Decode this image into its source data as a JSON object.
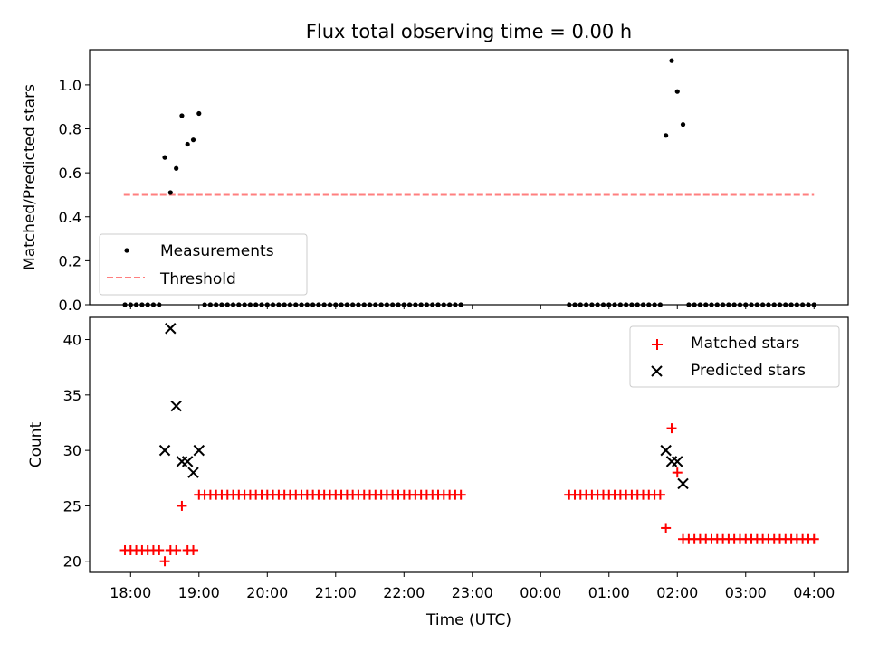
{
  "chart_data": [
    {
      "type": "scatter",
      "title": "Flux total observing time = 0.00 h",
      "xlabel": "",
      "ylabel": "Matched/Predicted stars",
      "xlim": [
        -0.6,
        10.5
      ],
      "ylim": [
        0.0,
        1.16
      ],
      "yticks": [
        0.0,
        0.2,
        0.4,
        0.6,
        0.8,
        1.0
      ],
      "ytick_labels": [
        "0.0",
        "0.2",
        "0.4",
        "0.6",
        "0.8",
        "1.0"
      ],
      "legend": {
        "placement": "lower-left",
        "entries": [
          "Measurements",
          "Threshold"
        ]
      },
      "threshold": {
        "name": "Threshold",
        "y": 0.5,
        "x_range": [
          -0.1,
          10.0
        ],
        "color": "#ff7f7f",
        "style": "dashed"
      },
      "series": [
        {
          "name": "Measurements",
          "marker": "dot",
          "color": "#000000",
          "points": [
            [
              -0.083,
              0
            ],
            [
              -0.0,
              0
            ],
            [
              0.083,
              0
            ],
            [
              0.167,
              0
            ],
            [
              0.25,
              0
            ],
            [
              0.333,
              0
            ],
            [
              0.417,
              0
            ],
            [
              0.5,
              0.67
            ],
            [
              0.583,
              0.51
            ],
            [
              0.667,
              0.62
            ],
            [
              0.75,
              0.86
            ],
            [
              0.833,
              0.73
            ],
            [
              0.917,
              0.75
            ],
            [
              1.0,
              0.87
            ],
            [
              1.083,
              0
            ],
            [
              1.167,
              0
            ],
            [
              1.25,
              0
            ],
            [
              1.333,
              0
            ],
            [
              1.417,
              0
            ],
            [
              1.5,
              0
            ],
            [
              1.583,
              0
            ],
            [
              1.667,
              0
            ],
            [
              1.75,
              0
            ],
            [
              1.833,
              0
            ],
            [
              1.917,
              0
            ],
            [
              2.0,
              0
            ],
            [
              2.083,
              0
            ],
            [
              2.167,
              0
            ],
            [
              2.25,
              0
            ],
            [
              2.333,
              0
            ],
            [
              2.417,
              0
            ],
            [
              2.5,
              0
            ],
            [
              2.583,
              0
            ],
            [
              2.667,
              0
            ],
            [
              2.75,
              0
            ],
            [
              2.833,
              0
            ],
            [
              2.917,
              0
            ],
            [
              3.0,
              0
            ],
            [
              3.083,
              0
            ],
            [
              3.167,
              0
            ],
            [
              3.25,
              0
            ],
            [
              3.333,
              0
            ],
            [
              3.417,
              0
            ],
            [
              3.5,
              0
            ],
            [
              3.583,
              0
            ],
            [
              3.667,
              0
            ],
            [
              3.75,
              0
            ],
            [
              3.833,
              0
            ],
            [
              3.917,
              0
            ],
            [
              4.0,
              0
            ],
            [
              4.083,
              0
            ],
            [
              4.167,
              0
            ],
            [
              4.25,
              0
            ],
            [
              4.333,
              0
            ],
            [
              4.417,
              0
            ],
            [
              4.5,
              0
            ],
            [
              4.583,
              0
            ],
            [
              4.667,
              0
            ],
            [
              4.75,
              0
            ],
            [
              4.833,
              0
            ],
            [
              6.417,
              0
            ],
            [
              6.5,
              0
            ],
            [
              6.583,
              0
            ],
            [
              6.667,
              0
            ],
            [
              6.75,
              0
            ],
            [
              6.833,
              0
            ],
            [
              6.917,
              0
            ],
            [
              7.0,
              0
            ],
            [
              7.083,
              0
            ],
            [
              7.167,
              0
            ],
            [
              7.25,
              0
            ],
            [
              7.333,
              0
            ],
            [
              7.417,
              0
            ],
            [
              7.5,
              0
            ],
            [
              7.583,
              0
            ],
            [
              7.667,
              0
            ],
            [
              7.75,
              0
            ],
            [
              7.833,
              0.77
            ],
            [
              7.917,
              1.11
            ],
            [
              8.0,
              0.97
            ],
            [
              8.083,
              0.82
            ],
            [
              8.167,
              0
            ],
            [
              8.25,
              0
            ],
            [
              8.333,
              0
            ],
            [
              8.417,
              0
            ],
            [
              8.5,
              0
            ],
            [
              8.583,
              0
            ],
            [
              8.667,
              0
            ],
            [
              8.75,
              0
            ],
            [
              8.833,
              0
            ],
            [
              8.917,
              0
            ],
            [
              9.0,
              0
            ],
            [
              9.083,
              0
            ],
            [
              9.167,
              0
            ],
            [
              9.25,
              0
            ],
            [
              9.333,
              0
            ],
            [
              9.417,
              0
            ],
            [
              9.5,
              0
            ],
            [
              9.583,
              0
            ],
            [
              9.667,
              0
            ],
            [
              9.75,
              0
            ],
            [
              9.833,
              0
            ],
            [
              9.917,
              0
            ],
            [
              10.0,
              0
            ]
          ]
        }
      ]
    },
    {
      "type": "scatter",
      "title": "",
      "xlabel": "Time (UTC)",
      "ylabel": "Count",
      "xlim": [
        -0.6,
        10.5
      ],
      "ylim": [
        19.0,
        42.0
      ],
      "xticks": [
        0,
        1,
        2,
        3,
        4,
        5,
        6,
        7,
        8,
        9,
        10
      ],
      "xtick_labels": [
        "18:00",
        "19:00",
        "20:00",
        "21:00",
        "22:00",
        "23:00",
        "00:00",
        "01:00",
        "02:00",
        "03:00",
        "04:00"
      ],
      "yticks": [
        20,
        25,
        30,
        35,
        40
      ],
      "ytick_labels": [
        "20",
        "25",
        "30",
        "35",
        "40"
      ],
      "legend": {
        "placement": "top-right",
        "entries": [
          "Matched stars",
          "Predicted stars"
        ]
      },
      "series": [
        {
          "name": "Matched stars",
          "marker": "plus",
          "color": "#ff0000",
          "points": [
            [
              -0.083,
              21
            ],
            [
              -0.0,
              21
            ],
            [
              0.083,
              21
            ],
            [
              0.167,
              21
            ],
            [
              0.25,
              21
            ],
            [
              0.333,
              21
            ],
            [
              0.417,
              21
            ],
            [
              0.5,
              20
            ],
            [
              0.583,
              21
            ],
            [
              0.667,
              21
            ],
            [
              0.75,
              25
            ],
            [
              0.833,
              21
            ],
            [
              0.917,
              21
            ],
            [
              1.0,
              26
            ],
            [
              1.083,
              26
            ],
            [
              1.167,
              26
            ],
            [
              1.25,
              26
            ],
            [
              1.333,
              26
            ],
            [
              1.417,
              26
            ],
            [
              1.5,
              26
            ],
            [
              1.583,
              26
            ],
            [
              1.667,
              26
            ],
            [
              1.75,
              26
            ],
            [
              1.833,
              26
            ],
            [
              1.917,
              26
            ],
            [
              2.0,
              26
            ],
            [
              2.083,
              26
            ],
            [
              2.167,
              26
            ],
            [
              2.25,
              26
            ],
            [
              2.333,
              26
            ],
            [
              2.417,
              26
            ],
            [
              2.5,
              26
            ],
            [
              2.583,
              26
            ],
            [
              2.667,
              26
            ],
            [
              2.75,
              26
            ],
            [
              2.833,
              26
            ],
            [
              2.917,
              26
            ],
            [
              3.0,
              26
            ],
            [
              3.083,
              26
            ],
            [
              3.167,
              26
            ],
            [
              3.25,
              26
            ],
            [
              3.333,
              26
            ],
            [
              3.417,
              26
            ],
            [
              3.5,
              26
            ],
            [
              3.583,
              26
            ],
            [
              3.667,
              26
            ],
            [
              3.75,
              26
            ],
            [
              3.833,
              26
            ],
            [
              3.917,
              26
            ],
            [
              4.0,
              26
            ],
            [
              4.083,
              26
            ],
            [
              4.167,
              26
            ],
            [
              4.25,
              26
            ],
            [
              4.333,
              26
            ],
            [
              4.417,
              26
            ],
            [
              4.5,
              26
            ],
            [
              4.583,
              26
            ],
            [
              4.667,
              26
            ],
            [
              4.75,
              26
            ],
            [
              4.833,
              26
            ],
            [
              6.417,
              26
            ],
            [
              6.5,
              26
            ],
            [
              6.583,
              26
            ],
            [
              6.667,
              26
            ],
            [
              6.75,
              26
            ],
            [
              6.833,
              26
            ],
            [
              6.917,
              26
            ],
            [
              7.0,
              26
            ],
            [
              7.083,
              26
            ],
            [
              7.167,
              26
            ],
            [
              7.25,
              26
            ],
            [
              7.333,
              26
            ],
            [
              7.417,
              26
            ],
            [
              7.5,
              26
            ],
            [
              7.583,
              26
            ],
            [
              7.667,
              26
            ],
            [
              7.75,
              26
            ],
            [
              7.833,
              23
            ],
            [
              7.917,
              32
            ],
            [
              8.0,
              28
            ],
            [
              8.083,
              22
            ],
            [
              8.167,
              22
            ],
            [
              8.25,
              22
            ],
            [
              8.333,
              22
            ],
            [
              8.417,
              22
            ],
            [
              8.5,
              22
            ],
            [
              8.583,
              22
            ],
            [
              8.667,
              22
            ],
            [
              8.75,
              22
            ],
            [
              8.833,
              22
            ],
            [
              8.917,
              22
            ],
            [
              9.0,
              22
            ],
            [
              9.083,
              22
            ],
            [
              9.167,
              22
            ],
            [
              9.25,
              22
            ],
            [
              9.333,
              22
            ],
            [
              9.417,
              22
            ],
            [
              9.5,
              22
            ],
            [
              9.583,
              22
            ],
            [
              9.667,
              22
            ],
            [
              9.75,
              22
            ],
            [
              9.833,
              22
            ],
            [
              9.917,
              22
            ],
            [
              10.0,
              22
            ]
          ]
        },
        {
          "name": "Predicted stars",
          "marker": "cross",
          "color": "#000000",
          "points": [
            [
              0.5,
              30
            ],
            [
              0.583,
              41
            ],
            [
              0.667,
              34
            ],
            [
              0.75,
              29
            ],
            [
              0.833,
              29
            ],
            [
              0.917,
              28
            ],
            [
              1.0,
              30
            ],
            [
              7.833,
              30
            ],
            [
              7.917,
              29
            ],
            [
              8.0,
              29
            ],
            [
              8.083,
              27
            ]
          ]
        }
      ]
    }
  ]
}
